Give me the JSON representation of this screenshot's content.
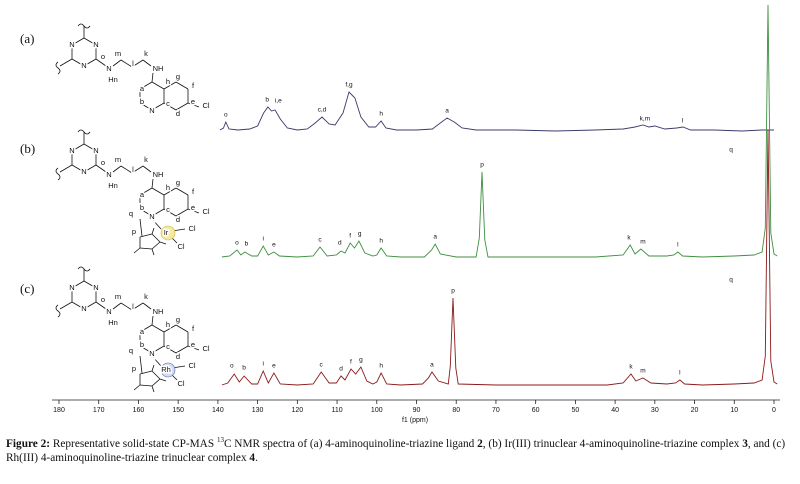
{
  "chart_data": {
    "type": "line",
    "xlabel": "f1 (ppm)",
    "xlim": [
      180,
      0
    ],
    "xticks": [
      180,
      170,
      160,
      150,
      140,
      130,
      120,
      110,
      100,
      90,
      80,
      70,
      60,
      50,
      40,
      30,
      20,
      10,
      0
    ],
    "panel_labels": [
      "(a)",
      "(b)",
      "(c)"
    ],
    "series": [
      {
        "color": "#3b3b6b",
        "x": [
          139.5,
          138.6,
          138,
          137.2,
          135,
          132,
          130,
          128.5,
          127.4,
          126.5,
          125.6,
          124.3,
          122.5,
          120,
          117.5,
          115.5,
          113.8,
          112,
          110.5,
          108.5,
          107,
          105.5,
          104,
          102,
          100.3,
          98.9,
          97.7,
          95,
          90,
          86,
          84,
          82.3,
          80.5,
          78.5,
          75,
          65,
          55,
          45,
          38,
          35,
          33,
          31.5,
          30,
          27.5,
          24.5,
          22.9,
          21,
          15,
          8,
          3,
          0
        ],
        "values": [
          1,
          3,
          9,
          2,
          1,
          2,
          5,
          18,
          24,
          20,
          21,
          12,
          3,
          1,
          2,
          8,
          14,
          7,
          6,
          18,
          39,
          33,
          14,
          4,
          4,
          10,
          3,
          1,
          1,
          2,
          8,
          13,
          9,
          3,
          1,
          1,
          0,
          1,
          2,
          4,
          6,
          4,
          5,
          2,
          3,
          4,
          1,
          1,
          0,
          1,
          1
        ],
        "annotations": [
          {
            "text": "o",
            "x": 138.0,
            "y": 16
          },
          {
            "text": "b",
            "x": 127.6,
            "y": 31
          },
          {
            "text": "i,e",
            "x": 124.8,
            "y": 30
          },
          {
            "text": "c,d",
            "x": 113.8,
            "y": 21
          },
          {
            "text": "f,g",
            "x": 107.0,
            "y": 46
          },
          {
            "text": "h",
            "x": 98.9,
            "y": 17
          },
          {
            "text": "a",
            "x": 82.3,
            "y": 20
          },
          {
            "text": "k,m",
            "x": 32.5,
            "y": 12
          },
          {
            "text": "l",
            "x": 23,
            "y": 10
          }
        ]
      },
      {
        "color": "#3f8f3f",
        "x": [
          139,
          137,
          135.2,
          134.2,
          133.2,
          131.5,
          130,
          128.6,
          127.3,
          125.9,
          124.5,
          120,
          116,
          114.3,
          112.5,
          110.2,
          109,
          108,
          106.7,
          105.6,
          104.5,
          103,
          101,
          100,
          98.9,
          97.5,
          94,
          88,
          86.2,
          85.3,
          84,
          80,
          75,
          74.2,
          73.5,
          72.8,
          72,
          60,
          45,
          38,
          36.2,
          35,
          33.5,
          31.5,
          27,
          25.2,
          24.2,
          23,
          18,
          10,
          5,
          3,
          2.2,
          1.5,
          0.8,
          0,
          -0.8
        ],
        "values": [
          1,
          2,
          8,
          3,
          6,
          2,
          2,
          12,
          3,
          6,
          2,
          1,
          2,
          11,
          2,
          3,
          7,
          5,
          15,
          10,
          17,
          5,
          2,
          3,
          10,
          2,
          1,
          1,
          8,
          14,
          4,
          1,
          1,
          20,
          86,
          18,
          1,
          1,
          1,
          3,
          13,
          4,
          9,
          2,
          2,
          3,
          6,
          2,
          1,
          2,
          3,
          6,
          30,
          253,
          25,
          4,
          2
        ],
        "annotations": [
          {
            "text": "o",
            "x": 135.2,
            "y": 15
          },
          {
            "text": "b",
            "x": 132.8,
            "y": 14
          },
          {
            "text": "i",
            "x": 128.6,
            "y": 19
          },
          {
            "text": "e",
            "x": 125.9,
            "y": 13
          },
          {
            "text": "c",
            "x": 114.3,
            "y": 18
          },
          {
            "text": "d",
            "x": 109.3,
            "y": 15
          },
          {
            "text": "f",
            "x": 106.7,
            "y": 22
          },
          {
            "text": "g",
            "x": 104.3,
            "y": 24
          },
          {
            "text": "h",
            "x": 98.9,
            "y": 17
          },
          {
            "text": "a",
            "x": 85.3,
            "y": 21
          },
          {
            "text": "p",
            "x": 73.5,
            "y": 93
          },
          {
            "text": "k",
            "x": 36.5,
            "y": 20
          },
          {
            "text": "m",
            "x": 33.0,
            "y": 16
          },
          {
            "text": "l",
            "x": 24.2,
            "y": 13
          },
          {
            "text": "q",
            "x": 10.8,
            "y": 108
          }
        ]
      },
      {
        "color": "#8b1a1a",
        "x": [
          139,
          137.5,
          135.9,
          134.6,
          133.4,
          131.5,
          130,
          128.6,
          127.3,
          125.9,
          124.3,
          120,
          116,
          114,
          112,
          110.2,
          109,
          108,
          106.5,
          105.3,
          104,
          102.5,
          101,
          100,
          98.9,
          97.5,
          94,
          88.5,
          87,
          86.1,
          84.5,
          82,
          81.5,
          80.8,
          80.1,
          79.5,
          70,
          55,
          42,
          38,
          36,
          34.8,
          33,
          31,
          27,
          24.8,
          23.7,
          22.5,
          18,
          10,
          5,
          3,
          2.2,
          1.5,
          0.8,
          0,
          -0.8
        ],
        "values": [
          1,
          3,
          12,
          4,
          10,
          2,
          2,
          15,
          3,
          13,
          2,
          1,
          2,
          14,
          3,
          3,
          10,
          6,
          17,
          12,
          19,
          5,
          2,
          4,
          13,
          2,
          1,
          2,
          8,
          14,
          5,
          2,
          20,
          88,
          18,
          2,
          1,
          1,
          1,
          3,
          12,
          5,
          8,
          3,
          2,
          3,
          6,
          2,
          1,
          2,
          3,
          6,
          30,
          256,
          25,
          4,
          2
        ],
        "annotations": [
          {
            "text": "o",
            "x": 136.5,
            "y": 20
          },
          {
            "text": "b",
            "x": 133.4,
            "y": 18
          },
          {
            "text": "i",
            "x": 128.6,
            "y": 22
          },
          {
            "text": "e",
            "x": 125.9,
            "y": 20
          },
          {
            "text": "c",
            "x": 114.0,
            "y": 21
          },
          {
            "text": "d",
            "x": 109,
            "y": 17
          },
          {
            "text": "f",
            "x": 106.5,
            "y": 24
          },
          {
            "text": "g",
            "x": 104,
            "y": 26
          },
          {
            "text": "h",
            "x": 98.9,
            "y": 20
          },
          {
            "text": "a",
            "x": 86.1,
            "y": 21
          },
          {
            "text": "p",
            "x": 80.8,
            "y": 95
          },
          {
            "text": "k",
            "x": 36,
            "y": 19
          },
          {
            "text": "m",
            "x": 33,
            "y": 15
          },
          {
            "text": "l",
            "x": 23.7,
            "y": 13
          },
          {
            "text": "q",
            "x": 10.8,
            "y": 106
          }
        ]
      }
    ]
  },
  "structures": [
    {
      "labels": [
        "N",
        "N",
        "N",
        "o",
        "N",
        "Hn",
        "m",
        "l",
        "k",
        "NH",
        "a",
        "b",
        "N",
        "h",
        "c",
        "g",
        "f",
        "e",
        "d",
        "Cl"
      ]
    },
    {
      "labels": [
        "N",
        "N",
        "N",
        "o",
        "N",
        "Hn",
        "m",
        "l",
        "k",
        "NH",
        "a",
        "b",
        "N",
        "h",
        "c",
        "g",
        "f",
        "e",
        "d",
        "Cl",
        "Ir",
        "Cl",
        "Cl",
        "p",
        "q"
      ]
    },
    {
      "labels": [
        "N",
        "N",
        "N",
        "o",
        "N",
        "Hn",
        "m",
        "l",
        "k",
        "NH",
        "a",
        "b",
        "N",
        "h",
        "c",
        "g",
        "f",
        "e",
        "d",
        "Cl",
        "Rh",
        "Cl",
        "Cl",
        "p",
        "q"
      ]
    }
  ],
  "caption": [
    "Figure 2:",
    " Representative solid-state CP-MAS ",
    "13",
    "C NMR spectra of (a) 4-aminoquinoline-triazine ligand ",
    "2",
    ", (b) Ir(III) trinuclear 4-aminoquinoline-triazine complex ",
    "3",
    ", and (c) Rh(III) 4-aminoquinoline-triazine trinuclear complex ",
    "4",
    "."
  ]
}
